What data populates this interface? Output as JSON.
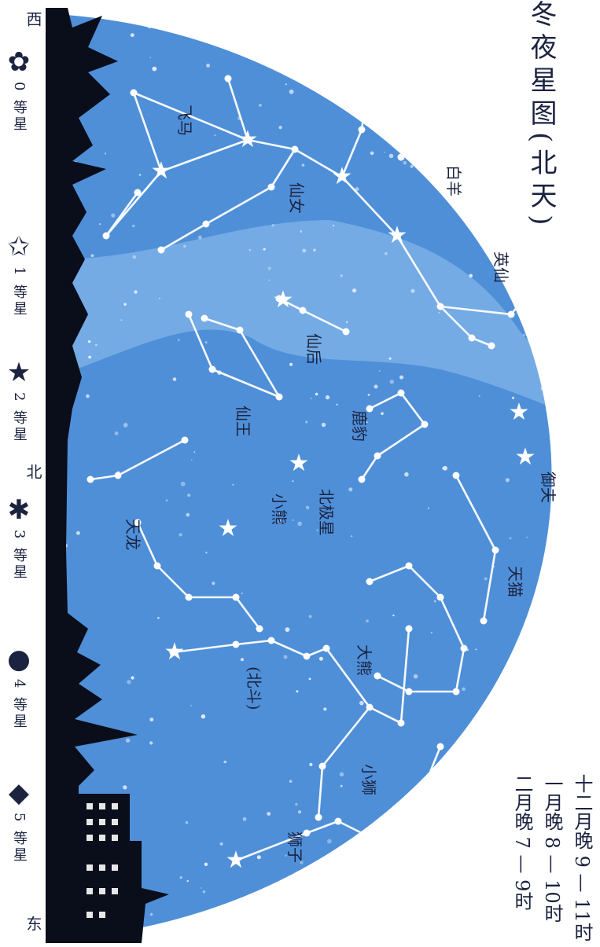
{
  "title": "冬夜星图(北天)",
  "observing_times": [
    "十二月晚 9 — 11时",
    "一月晚 8 — 10时",
    "二月晚 7 — 9时"
  ],
  "directions": {
    "west": "西",
    "north": "北",
    "east": "东"
  },
  "legend": [
    {
      "symbol": "✿",
      "label": "0 等星"
    },
    {
      "symbol": "✩",
      "label": "1 等星"
    },
    {
      "symbol": "★",
      "label": "2 等星"
    },
    {
      "symbol": "✱",
      "label": "3 等星"
    },
    {
      "symbol": "●",
      "label": "4 等星"
    },
    {
      "symbol": "◆",
      "label": "5 等星"
    }
  ],
  "constellations": [
    "白羊",
    "英仙",
    "仙女",
    "飞马",
    "仙后",
    "仙王",
    "鹿豹",
    "北极星",
    "小熊",
    "天龙",
    "御夫",
    "天猫",
    "大熊",
    "(北斗)",
    "小狮",
    "狮子"
  ],
  "colors": {
    "sky": "#4f8fd8",
    "milky_way": "#7ab0e8",
    "silhouette": "#0a0d1a",
    "star": "#ffffff",
    "text": "#1b2340"
  }
}
